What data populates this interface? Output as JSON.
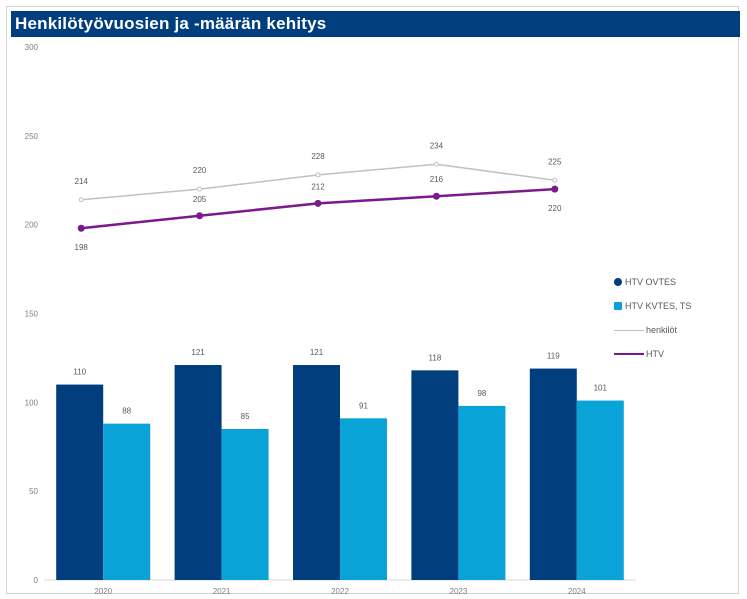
{
  "header": {
    "title": "Henkilötyövuosien ja -määrän kehitys"
  },
  "chart_data": {
    "type": "bar",
    "title": "Henkilötyövuosien ja -määrän kehitys",
    "categories": [
      "2020",
      "2021",
      "2022",
      "2023",
      "2024"
    ],
    "ylim": [
      0,
      300
    ],
    "yticks": [
      0,
      50,
      100,
      150,
      200,
      250,
      300
    ],
    "grid": false,
    "legend_position": "right",
    "bar_series": [
      {
        "name": "HTV OVTES",
        "color": "#003e7e",
        "values": [
          110,
          121,
          121,
          118,
          119
        ],
        "labels": [
          "110",
          "121",
          "121",
          "118",
          "119"
        ]
      },
      {
        "name": "HTV KVTES, TS",
        "color": "#0aa3d8",
        "values": [
          88,
          85,
          91,
          98,
          101
        ],
        "labels": [
          "88",
          "85",
          "91",
          "98",
          "101"
        ]
      }
    ],
    "line_series": [
      {
        "name": "henkilöt",
        "color": "#c0c0c0",
        "values": [
          214,
          220,
          228,
          234,
          225
        ],
        "labels": [
          "214",
          "220",
          "228",
          "234",
          "225"
        ]
      },
      {
        "name": "HTV",
        "color": "#7a1a8c",
        "values": [
          198,
          205,
          212,
          216,
          220
        ],
        "labels": [
          "198",
          "205",
          "212",
          "216",
          "220"
        ]
      }
    ]
  }
}
